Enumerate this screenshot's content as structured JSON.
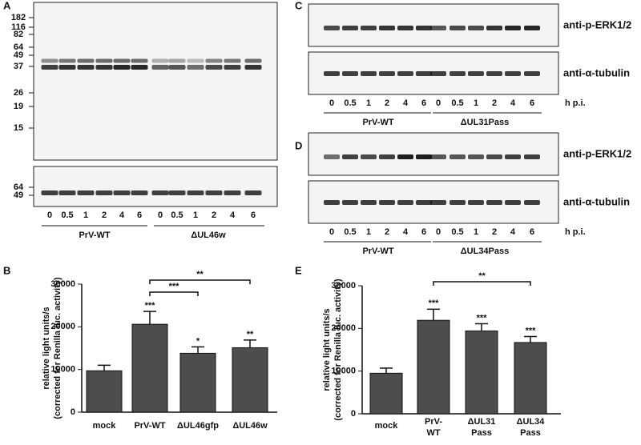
{
  "panels": {
    "A": {
      "letter": "A",
      "markers": [
        182,
        116,
        82,
        64,
        49,
        37,
        26,
        19,
        15
      ],
      "lower_markers": [
        64,
        49
      ],
      "lanes": [
        0,
        0.5,
        1,
        2,
        4,
        6,
        0,
        0.5,
        1,
        2,
        4,
        6
      ],
      "groups": [
        "PrV-WT",
        "ΔUL46w"
      ]
    },
    "C": {
      "letter": "C",
      "blots": [
        "anti-p-ERK1/2",
        "anti-α-tubulin"
      ],
      "lanes": [
        0,
        0.5,
        1,
        2,
        4,
        6,
        0,
        0.5,
        1,
        2,
        4,
        6
      ],
      "time_label": "h p.i.",
      "groups": [
        "PrV-WT",
        "ΔUL31Pass"
      ]
    },
    "D": {
      "letter": "D",
      "blots": [
        "anti-p-ERK1/2",
        "anti-α-tubulin"
      ],
      "lanes": [
        0,
        0.5,
        1,
        2,
        4,
        6,
        0,
        0.5,
        1,
        2,
        4,
        6
      ],
      "time_label": "h p.i.",
      "groups": [
        "PrV-WT",
        "ΔUL34Pass"
      ]
    }
  },
  "chart_data": [
    {
      "type": "bar",
      "letter": "B",
      "y_label": [
        "relative light units/s",
        "(corrected for Renilla luc. activity)"
      ],
      "categories": [
        [
          "mock"
        ],
        [
          "PrV-WT"
        ],
        [
          "ΔUL46gfp"
        ],
        [
          "ΔUL46w"
        ]
      ],
      "values": [
        9700,
        20600,
        13800,
        15100
      ],
      "errors": [
        1300,
        3000,
        1500,
        1800
      ],
      "significance": [
        null,
        "***",
        "*",
        "**"
      ],
      "brackets": [
        "***",
        "**"
      ],
      "color": "#4d4d4d",
      "ylim": [
        0,
        30000
      ],
      "yticks": [
        0,
        10000,
        20000,
        30000
      ]
    },
    {
      "type": "bar",
      "letter": "E",
      "y_label": [
        "relative light units/s",
        "(corrected for Renilla luc. activity)"
      ],
      "categories": [
        [
          "mock"
        ],
        [
          "PrV-",
          "WT"
        ],
        [
          "ΔUL31",
          "Pass"
        ],
        [
          "ΔUL34",
          "Pass"
        ]
      ],
      "values": [
        9500,
        21900,
        19400,
        16700
      ],
      "errors": [
        1200,
        2600,
        1700,
        1400
      ],
      "significance": [
        null,
        "***",
        "***",
        "***"
      ],
      "brackets": [
        "**"
      ],
      "color": "#4d4d4d",
      "ylim": [
        0,
        30000
      ],
      "yticks": [
        0,
        10000,
        20000,
        30000
      ]
    }
  ]
}
